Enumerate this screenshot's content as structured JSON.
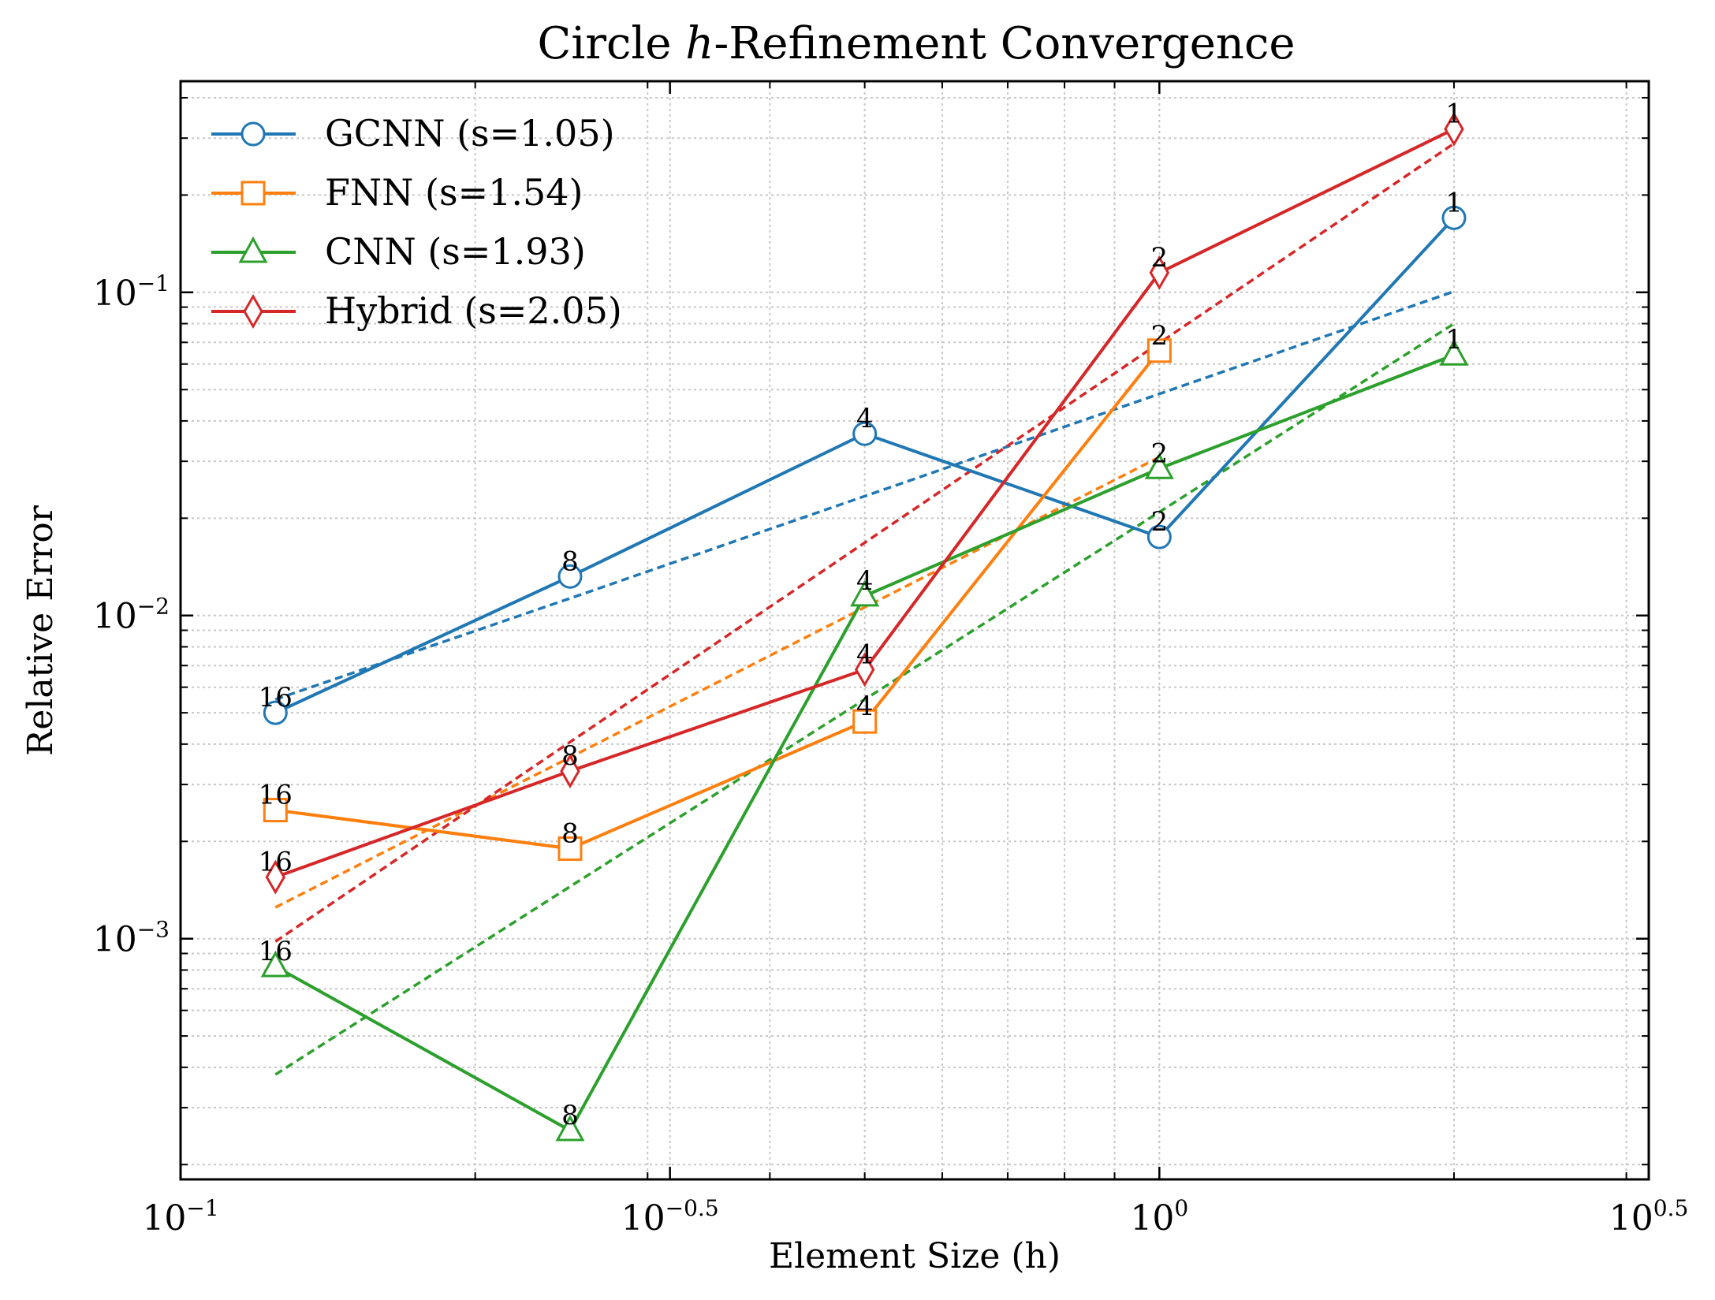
{
  "chart_data": {
    "type": "line",
    "title": "Circle h-Refinement Convergence",
    "title_parts": {
      "prefix": "Circle ",
      "italic": "h",
      "suffix": "-Refinement Convergence"
    },
    "xlabel": "Element Size (h)",
    "ylabel": "Relative Error",
    "x_scale": "log",
    "y_scale": "log",
    "xlim": [
      0.1,
      3.1623
    ],
    "ylim": [
      0.00018,
      0.45
    ],
    "x_ticks": [
      {
        "value": 0.1,
        "base": "10",
        "exp": "−1"
      },
      {
        "value": 0.31623,
        "base": "10",
        "exp": "−0.5"
      },
      {
        "value": 1.0,
        "base": "10",
        "exp": "0"
      },
      {
        "value": 3.1623,
        "base": "10",
        "exp": "0.5"
      }
    ],
    "y_ticks": [
      {
        "value": 0.001,
        "base": "10",
        "exp": "−3"
      },
      {
        "value": 0.01,
        "base": "10",
        "exp": "−2"
      },
      {
        "value": 0.1,
        "base": "10",
        "exp": "−1"
      }
    ],
    "grid": true,
    "legend_position": "top-left",
    "x": [
      0.125,
      0.25,
      0.5,
      1.0,
      2.0
    ],
    "point_labels": [
      "16",
      "8",
      "4",
      "2",
      "1"
    ],
    "series": [
      {
        "name": "GCNN (s=1.05)",
        "color": "#1f77b4",
        "marker": "circle",
        "values": [
          0.005,
          0.0132,
          0.0365,
          0.0175,
          0.17
        ],
        "fit": [
          0.0055,
          0.0113,
          0.0234,
          0.0485,
          0.1006
        ]
      },
      {
        "name": "FNN (s=1.54)",
        "color": "#ff7f0e",
        "marker": "square",
        "values": [
          0.0025,
          0.0019,
          0.0047,
          0.066,
          null
        ],
        "fit": [
          0.00125,
          0.00364,
          0.0106,
          0.0309,
          null
        ]
      },
      {
        "name": "CNN (s=1.93)",
        "color": "#2ca02c",
        "marker": "triangle",
        "values": [
          0.00082,
          0.000255,
          0.0115,
          0.0285,
          0.064
        ],
        "fit": [
          0.00038,
          0.00145,
          0.0055,
          0.0209,
          0.08
        ]
      },
      {
        "name": "Hybrid (s=2.05)",
        "color": "#d62728",
        "marker": "diamond",
        "values": [
          0.00155,
          0.0033,
          0.0068,
          0.115,
          0.32
        ],
        "fit": [
          0.00098,
          0.00406,
          0.0168,
          0.0697,
          0.2887
        ]
      }
    ]
  }
}
